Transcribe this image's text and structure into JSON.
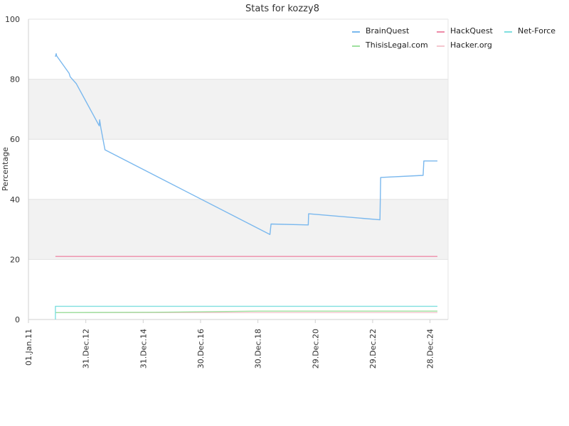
{
  "chart_data": {
    "type": "line",
    "title": "Stats for kozzy8",
    "xlabel": "",
    "ylabel": "Percentage",
    "ylim": [
      0,
      100
    ],
    "xlim": [
      "2011-01-01",
      "2025-08-15"
    ],
    "yticks": [
      "0",
      "20",
      "40",
      "60",
      "80",
      "100"
    ],
    "xticks": [
      {
        "date": "2011-01-01",
        "label": "01.Jan.11"
      },
      {
        "date": "2012-12-31",
        "label": "31.Dec.12"
      },
      {
        "date": "2014-12-31",
        "label": "31.Dec.14"
      },
      {
        "date": "2016-12-30",
        "label": "30.Dec.16"
      },
      {
        "date": "2018-12-30",
        "label": "30.Dec.18"
      },
      {
        "date": "2020-12-29",
        "label": "29.Dec.20"
      },
      {
        "date": "2022-12-29",
        "label": "29.Dec.22"
      },
      {
        "date": "2024-12-28",
        "label": "28.Dec.24"
      }
    ],
    "grid": "alternating horizontal bands",
    "legend_position": "top-right",
    "series": [
      {
        "name": "BrainQuest",
        "color": "#7ab8ee",
        "points": [
          [
            "2011-12-10",
            87.5
          ],
          [
            "2011-12-20",
            88.5
          ],
          [
            "2011-12-25",
            87.8
          ],
          [
            "2012-06-01",
            82.0
          ],
          [
            "2012-06-15",
            80.8
          ],
          [
            "2012-09-01",
            78.5
          ],
          [
            "2013-06-20",
            64.5
          ],
          [
            "2013-06-25",
            66.5
          ],
          [
            "2013-07-10",
            63.8
          ],
          [
            "2013-09-01",
            56.5
          ],
          [
            "2019-06-01",
            28.3
          ],
          [
            "2019-06-15",
            31.8
          ],
          [
            "2020-10-01",
            31.5
          ],
          [
            "2020-10-05",
            35.2
          ],
          [
            "2023-04-01",
            33.2
          ],
          [
            "2023-04-10",
            47.3
          ],
          [
            "2024-10-01",
            48.0
          ],
          [
            "2024-10-10",
            52.8
          ],
          [
            "2025-04-01",
            52.8
          ]
        ]
      },
      {
        "name": "HackQuest",
        "color": "#ee8ba8",
        "points": [
          [
            "2011-12-10",
            21.0
          ],
          [
            "2025-04-01",
            21.0
          ]
        ]
      },
      {
        "name": "Net-Force",
        "color": "#7fdfdf",
        "points": [
          [
            "2011-12-10",
            0.0
          ],
          [
            "2011-12-10",
            4.4
          ],
          [
            "2025-04-01",
            4.4
          ]
        ]
      },
      {
        "name": "ThisisLegal.com",
        "color": "#9ee09e",
        "points": [
          [
            "2011-12-10",
            2.3
          ],
          [
            "2015-06-01",
            2.4
          ],
          [
            "2019-01-01",
            2.8
          ],
          [
            "2025-04-01",
            2.8
          ]
        ]
      },
      {
        "name": "Hacker.org",
        "color": "#f4c7cf",
        "points": [
          [
            "2011-12-10",
            2.3
          ],
          [
            "2025-04-01",
            2.3
          ]
        ]
      }
    ]
  }
}
